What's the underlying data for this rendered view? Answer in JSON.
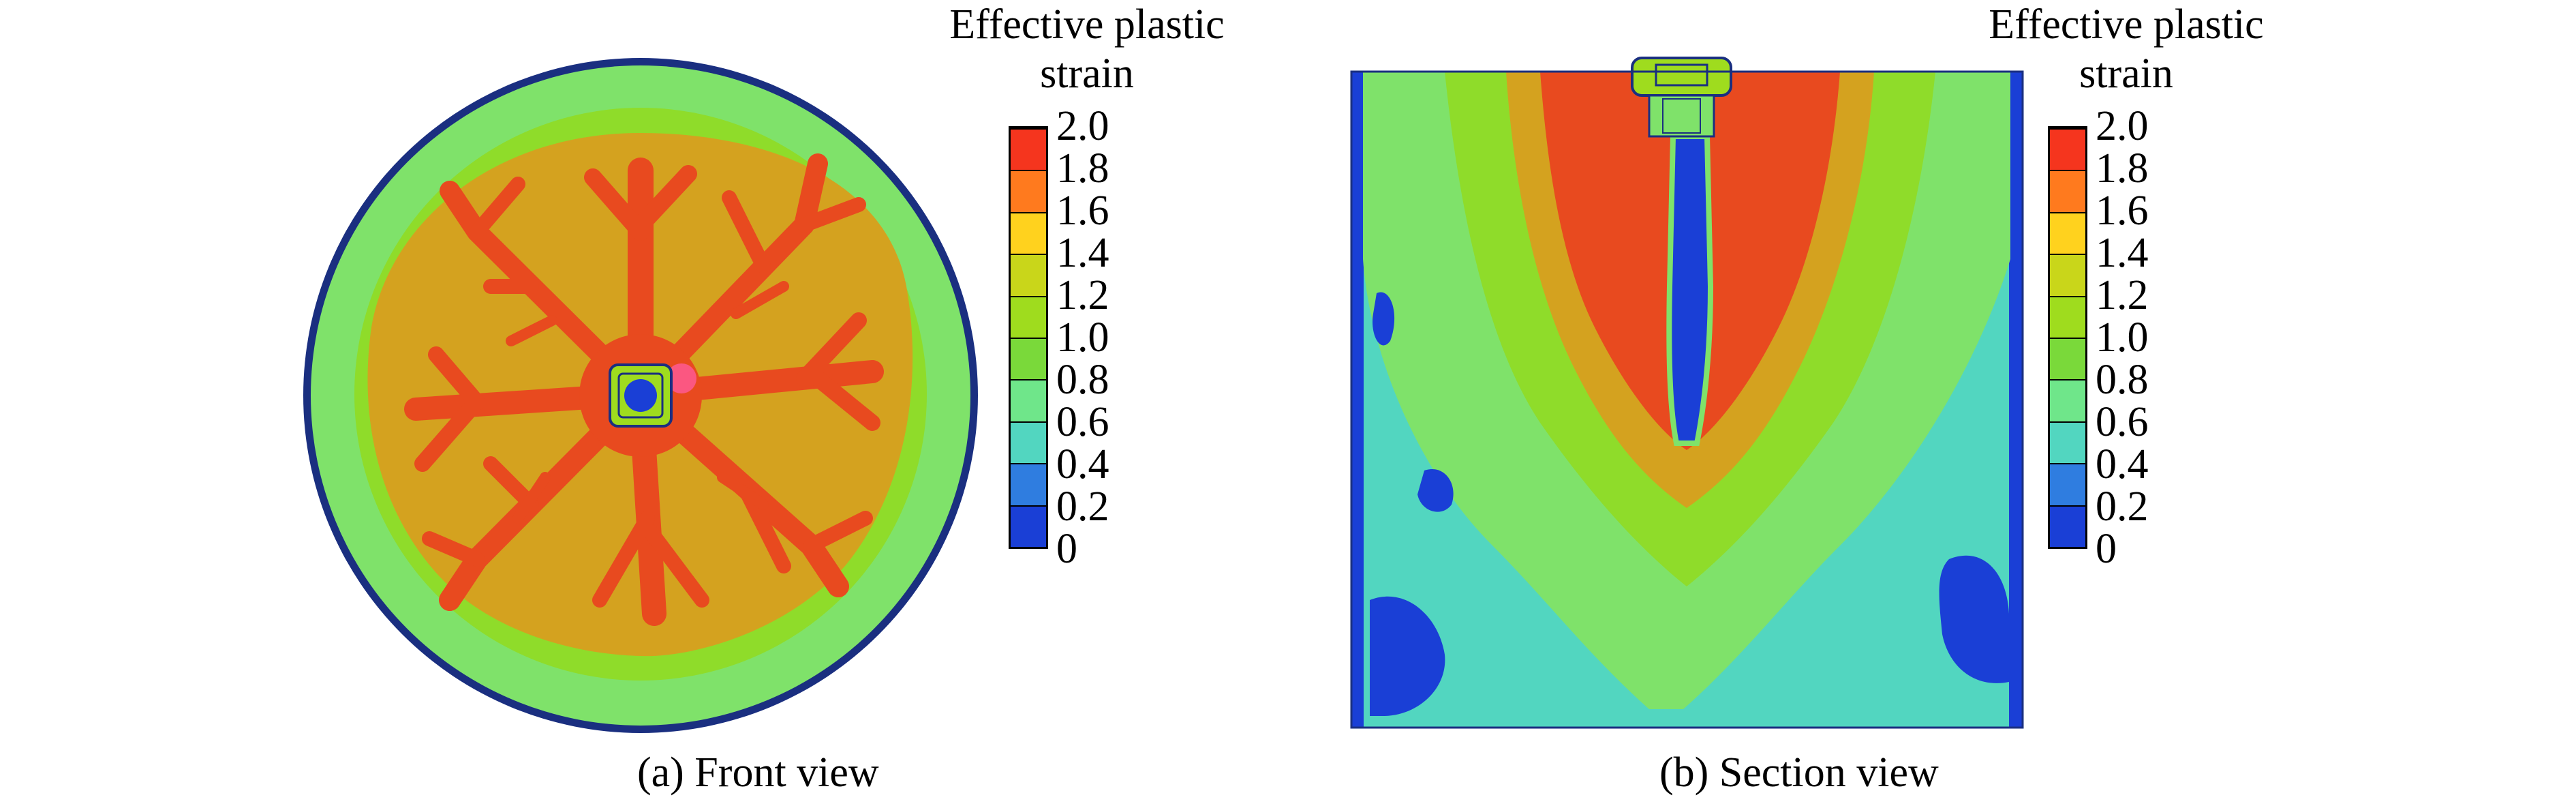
{
  "panels": [
    {
      "id": "a",
      "caption": "(a) Front view",
      "legend_title": "Effective plastic\nstrain"
    },
    {
      "id": "b",
      "caption": "(b) Section view",
      "legend_title": "Effective plastic\nstrain"
    }
  ],
  "colorbar": {
    "tick_labels": [
      "0",
      "0.2",
      "0.4",
      "0.6",
      "0.8",
      "1.0",
      "1.2",
      "1.4",
      "1.6",
      "1.8",
      "2.0"
    ],
    "colors": [
      "#1a3fd6",
      "#2f7de0",
      "#52d6c0",
      "#6fe68a",
      "#7ad93a",
      "#9fdc1e",
      "#c9d61a",
      "#ffd21e",
      "#ff7a1e",
      "#f5351e"
    ]
  },
  "palette": {
    "outline": "#1a2f80",
    "blue": "#1a3fd6",
    "cyan": "#52d6c0",
    "green": "#7fe26a",
    "lime": "#8fdc2a",
    "ochre": "#d4a21f",
    "orange": "#ee6a28",
    "red": "#e84a1f",
    "pink": "#ff5a9a"
  }
}
